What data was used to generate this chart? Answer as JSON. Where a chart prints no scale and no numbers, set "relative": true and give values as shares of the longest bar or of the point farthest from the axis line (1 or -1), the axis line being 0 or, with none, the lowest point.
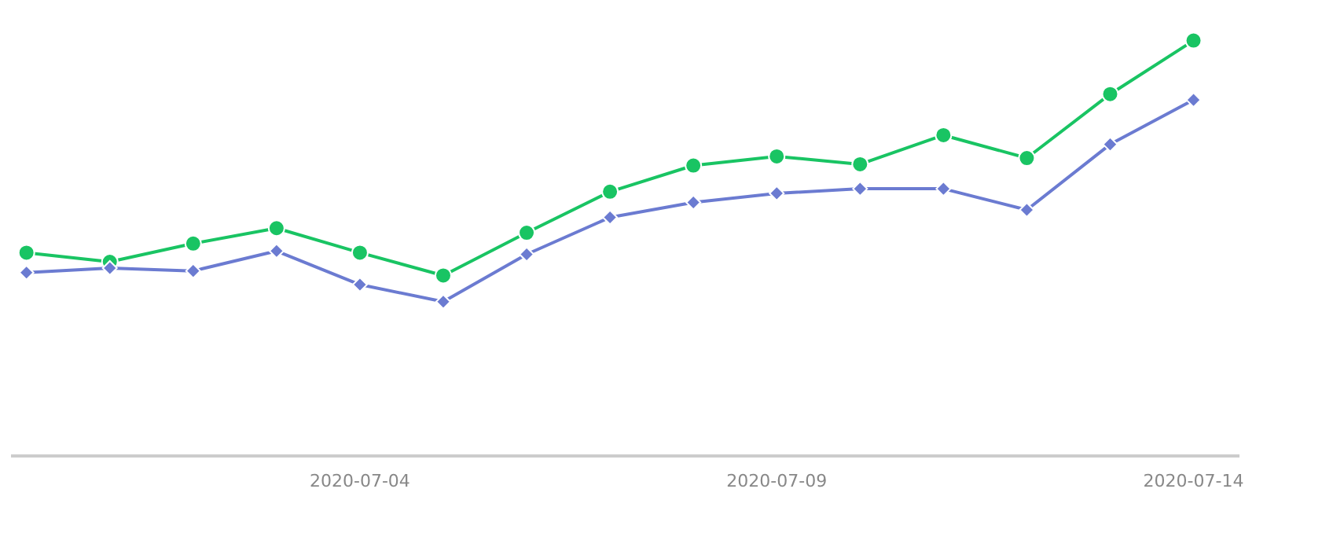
{
  "chart_data": {
    "type": "line",
    "relative": true,
    "x": [
      "2020-06-30",
      "2020-07-01",
      "2020-07-02",
      "2020-07-03",
      "2020-07-04",
      "2020-07-05",
      "2020-07-06",
      "2020-07-07",
      "2020-07-08",
      "2020-07-09",
      "2020-07-10",
      "2020-07-11",
      "2020-07-12",
      "2020-07-13",
      "2020-07-14"
    ],
    "xlim": [
      "2020-06-29T20:00",
      "2020-07-14T13:00"
    ],
    "xticks": [
      "2020-07-04",
      "2020-07-09",
      "2020-07-14"
    ],
    "series": [
      {
        "color": "#19c463",
        "marker": "circle",
        "values": [
          0.489,
          0.467,
          0.511,
          0.548,
          0.489,
          0.434,
          0.537,
          0.636,
          0.699,
          0.721,
          0.702,
          0.772,
          0.717,
          0.871,
          1
        ]
      },
      {
        "color": "#6b7bd1",
        "marker": "diamond",
        "values": [
          0.441,
          0.452,
          0.445,
          0.493,
          0.412,
          0.371,
          0.485,
          0.574,
          0.61,
          0.632,
          0.643,
          0.643,
          0.592,
          0.75,
          0.857
        ]
      }
    ],
    "line_style": "solid",
    "legend": false,
    "grid": false
  }
}
